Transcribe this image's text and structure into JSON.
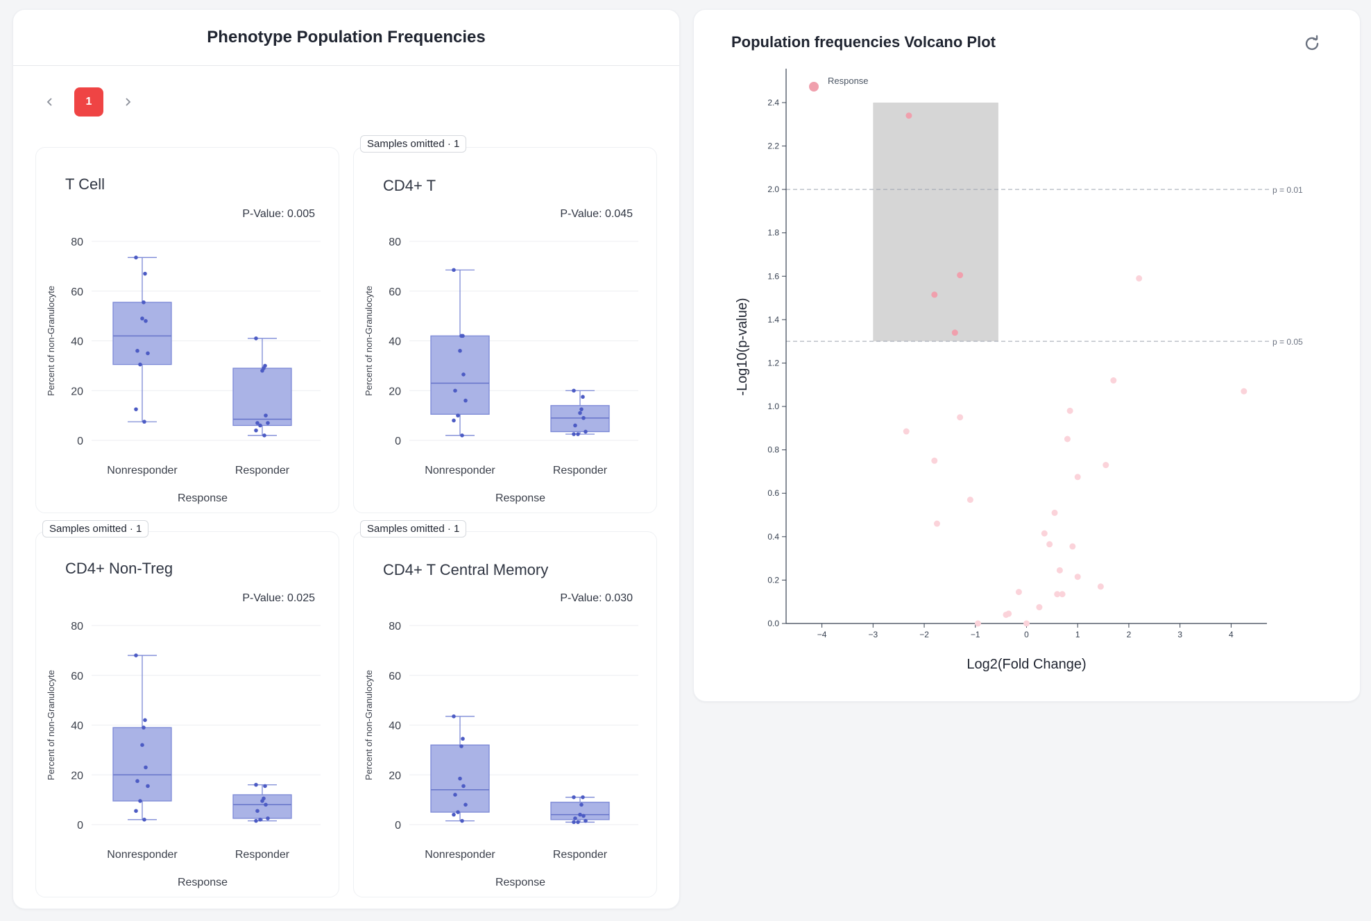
{
  "left_panel": {
    "title": "Phenotype Population Frequencies",
    "pagination": {
      "current_page": "1"
    }
  },
  "right_panel": {
    "title": "Population frequencies Volcano Plot"
  },
  "chart_data": [
    {
      "type": "box",
      "title": "T Cell",
      "p_value_text": "P-Value: 0.005",
      "badge": "",
      "xlabel": "Response",
      "ylabel": "Percent of non-Granulocyte",
      "ylim": [
        0,
        80
      ],
      "yticks": [
        0,
        20,
        40,
        60,
        80
      ],
      "categories": [
        "Nonresponder",
        "Responder"
      ],
      "boxes": [
        {
          "category": "Nonresponder",
          "min": 7.5,
          "q1": 30.5,
          "median": 42,
          "q3": 55.5,
          "max": 73.5,
          "points": [
            73.5,
            67,
            55.5,
            49,
            48,
            36,
            35,
            30.5,
            12.5,
            7.5
          ]
        },
        {
          "category": "Responder",
          "min": 2,
          "q1": 6,
          "median": 8.5,
          "q3": 29,
          "max": 41,
          "points": [
            41,
            30,
            29,
            28,
            10,
            7,
            7,
            6,
            4,
            2
          ]
        }
      ],
      "color": "#7b88d6"
    },
    {
      "type": "box",
      "title": "CD4+ T",
      "p_value_text": "P-Value: 0.045",
      "badge": "Samples omitted · 1",
      "xlabel": "Response",
      "ylabel": "Percent of non-Granulocyte",
      "ylim": [
        0,
        80
      ],
      "yticks": [
        0,
        20,
        40,
        60,
        80
      ],
      "categories": [
        "Nonresponder",
        "Responder"
      ],
      "boxes": [
        {
          "category": "Nonresponder",
          "min": 2,
          "q1": 10.5,
          "median": 23,
          "q3": 42,
          "max": 68.5,
          "points": [
            68.5,
            42,
            42,
            36,
            26.5,
            20,
            16,
            10,
            8,
            2
          ]
        },
        {
          "category": "Responder",
          "min": 2.5,
          "q1": 3.5,
          "median": 9,
          "q3": 14,
          "max": 20,
          "points": [
            20,
            17.5,
            12.5,
            11,
            9,
            6,
            3.5,
            2.5,
            2.5
          ]
        }
      ],
      "color": "#7b88d6"
    },
    {
      "type": "box",
      "title": "CD4+ Non-Treg",
      "p_value_text": "P-Value: 0.025",
      "badge": "Samples omitted · 1",
      "xlabel": "Response",
      "ylabel": "Percent of non-Granulocyte",
      "ylim": [
        0,
        80
      ],
      "yticks": [
        0,
        20,
        40,
        60,
        80
      ],
      "categories": [
        "Nonresponder",
        "Responder"
      ],
      "boxes": [
        {
          "category": "Nonresponder",
          "min": 2,
          "q1": 9.5,
          "median": 20,
          "q3": 39,
          "max": 68,
          "points": [
            68,
            42,
            39,
            32,
            23,
            17.5,
            15.5,
            9.5,
            5.5,
            2
          ]
        },
        {
          "category": "Responder",
          "min": 1.5,
          "q1": 2.5,
          "median": 8,
          "q3": 12,
          "max": 16,
          "points": [
            16,
            15.5,
            10.5,
            9.5,
            8,
            5.5,
            2.5,
            2,
            1.5
          ]
        }
      ],
      "color": "#7b88d6"
    },
    {
      "type": "box",
      "title": "CD4+ T Central Memory",
      "p_value_text": "P-Value: 0.030",
      "badge": "Samples omitted · 1",
      "xlabel": "Response",
      "ylabel": "Percent of non-Granulocyte",
      "ylim": [
        0,
        80
      ],
      "yticks": [
        0,
        20,
        40,
        60,
        80
      ],
      "categories": [
        "Nonresponder",
        "Responder"
      ],
      "boxes": [
        {
          "category": "Nonresponder",
          "min": 1.5,
          "q1": 5,
          "median": 14,
          "q3": 32,
          "max": 43.5,
          "points": [
            43.5,
            34.5,
            31.5,
            18.5,
            15.5,
            12,
            8,
            5,
            4,
            1.5
          ]
        },
        {
          "category": "Responder",
          "min": 1,
          "q1": 2,
          "median": 4,
          "q3": 9,
          "max": 11,
          "points": [
            11,
            11,
            8,
            4,
            3.5,
            2.5,
            1.5,
            1,
            1
          ]
        }
      ],
      "color": "#7b88d6"
    },
    {
      "type": "scatter",
      "title": "",
      "xlabel": "Log2(Fold Change)",
      "ylabel": "-Log10(p-value)",
      "xlim": [
        -4.7,
        4.7
      ],
      "ylim": [
        0,
        2.55
      ],
      "xticks": [
        -4,
        -3,
        -2,
        -1,
        0,
        1,
        2,
        3,
        4
      ],
      "yticks": [
        0.0,
        0.2,
        0.4,
        0.6,
        0.8,
        1.0,
        1.2,
        1.4,
        1.6,
        1.8,
        2.0,
        2.2,
        2.4
      ],
      "legend": {
        "label": "Response",
        "color": "#f0a0ad",
        "position": "top-left"
      },
      "threshold_lines": [
        {
          "y": 2.0,
          "label": "p = 0.01"
        },
        {
          "y": 1.3,
          "label": "p = 0.05"
        }
      ],
      "highlight_rect": {
        "x0": -3.0,
        "x1": -0.55,
        "y0": 1.3,
        "y1": 2.4,
        "color": "#d6d6d6"
      },
      "significant_points": [
        {
          "x": -2.3,
          "y": 2.34
        },
        {
          "x": -1.3,
          "y": 1.605
        },
        {
          "x": -1.8,
          "y": 1.515
        },
        {
          "x": -1.4,
          "y": 1.34
        }
      ],
      "other_points": [
        {
          "x": 2.2,
          "y": 1.59
        },
        {
          "x": 1.7,
          "y": 1.12
        },
        {
          "x": 4.25,
          "y": 1.07
        },
        {
          "x": 0.85,
          "y": 0.98
        },
        {
          "x": -1.3,
          "y": 0.95
        },
        {
          "x": -2.35,
          "y": 0.885
        },
        {
          "x": 0.8,
          "y": 0.85
        },
        {
          "x": -1.8,
          "y": 0.75
        },
        {
          "x": 1.55,
          "y": 0.73
        },
        {
          "x": 1.0,
          "y": 0.675
        },
        {
          "x": -1.1,
          "y": 0.57
        },
        {
          "x": 0.55,
          "y": 0.51
        },
        {
          "x": -1.75,
          "y": 0.46
        },
        {
          "x": 0.35,
          "y": 0.415
        },
        {
          "x": 0.45,
          "y": 0.365
        },
        {
          "x": 0.9,
          "y": 0.355
        },
        {
          "x": 0.65,
          "y": 0.245
        },
        {
          "x": 1.0,
          "y": 0.215
        },
        {
          "x": 1.45,
          "y": 0.17
        },
        {
          "x": -0.15,
          "y": 0.145
        },
        {
          "x": 0.6,
          "y": 0.135
        },
        {
          "x": 0.7,
          "y": 0.135
        },
        {
          "x": 0.25,
          "y": 0.075
        },
        {
          "x": -0.35,
          "y": 0.045
        },
        {
          "x": -0.4,
          "y": 0.04
        },
        {
          "x": -0.95,
          "y": 0.0
        },
        {
          "x": 0.0,
          "y": 0.0
        }
      ],
      "significant_color": "#f0a0ad",
      "other_color": "#fbd3da"
    }
  ]
}
